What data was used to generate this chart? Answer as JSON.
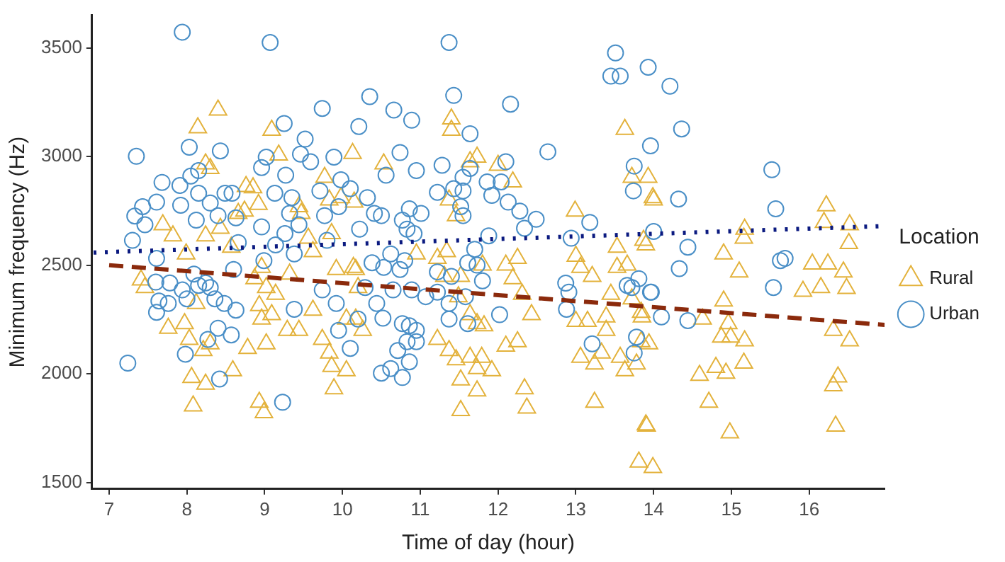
{
  "chart_data": {
    "type": "scatter",
    "xlabel": "Time of day (hour)",
    "ylabel": "Minimum frequency (Hz)",
    "legend_title": "Location",
    "legend": "right",
    "grid": false,
    "xlim": [
      6.78,
      16.97
    ],
    "xticks": [
      7,
      8,
      9,
      10,
      11,
      12,
      13,
      14,
      15,
      16
    ],
    "ylim": [
      1470,
      3650
    ],
    "yticks": [
      1500,
      2000,
      2500,
      3000,
      3500
    ],
    "series": [
      {
        "name": "Rural",
        "color": "#e3b23c",
        "marker": "triangle",
        "x": [
          8.4,
          8.14,
          8.24,
          8.3,
          9.09,
          9.18,
          10.13,
          7.69,
          7.82,
          7.41,
          7.46,
          7.99,
          8.24,
          8.43,
          8.76,
          8.85,
          8.92,
          8.74,
          8.57,
          8.66,
          8.87,
          8.96,
          9.02,
          8.93,
          9.09,
          8.96,
          9.14,
          9.44,
          9.47,
          9.32,
          9.56,
          9.62,
          9.62,
          9.77,
          9.83,
          9.86,
          9.92,
          9.98,
          10.15,
          10.05,
          7.76,
          7.97,
          8.03,
          8.12,
          8.21,
          8.3,
          8.06,
          8.24,
          8.08,
          8.59,
          8.78,
          9.02,
          9.29,
          9.44,
          9.74,
          9.83,
          9.86,
          10.05,
          9.89,
          8.93,
          8.99,
          10.17,
          11.4,
          11.4,
          13.63,
          10.53,
          11.64,
          11.73,
          12.0,
          12.19,
          11.37,
          11.46,
          12.99,
          13.72,
          13.93,
          13.99,
          13.87,
          13.53,
          13.53,
          13.66,
          13.0,
          13.06,
          13.21,
          10.95,
          11.22,
          11.34,
          11.52,
          11.8,
          12.1,
          12.25,
          12.19,
          12.31,
          10.14,
          10.2,
          10.17,
          10.26,
          11.31,
          11.49,
          11.64,
          11.73,
          11.82,
          12.43,
          11.22,
          11.37,
          11.46,
          11.64,
          11.79,
          11.73,
          11.92,
          12.1,
          12.25,
          11.52,
          11.73,
          11.52,
          12.34,
          12.37,
          13.24,
          13.0,
          13.15,
          13.39,
          13.39,
          13.06,
          13.24,
          13.33,
          13.57,
          13.63,
          13.78,
          13.84,
          13.9,
          13.81,
          13.99,
          13.45,
          13.72,
          13.84,
          14.0,
          13.9,
          14.9,
          15.1,
          15.17,
          15.16,
          14.9,
          14.63,
          14.96,
          14.87,
          14.99,
          15.17,
          15.16,
          14.59,
          14.8,
          14.93,
          14.71,
          14.98,
          13.91,
          16.22,
          16.19,
          16.52,
          16.51,
          16.04,
          16.24,
          16.44,
          15.92,
          16.15,
          16.48,
          16.31,
          16.52,
          16.37,
          16.31,
          16.34,
          13.85,
          13.94
        ],
        "values": [
          3214,
          3132,
          2966,
          2945,
          3121,
          3007,
          3014,
          2686,
          2635,
          2432,
          2397,
          2552,
          2635,
          2670,
          2862,
          2856,
          2780,
          2749,
          2583,
          2738,
          2438,
          2490,
          2397,
          2314,
          2272,
          2252,
          2366,
          2769,
          2738,
          2459,
          2624,
          2562,
          2293,
          2904,
          2800,
          2645,
          2480,
          2811,
          2790,
          2252,
          2210,
          2231,
          2158,
          2324,
          2107,
          2138,
          1983,
          1952,
          1852,
          2014,
          2117,
          2138,
          2200,
          2200,
          2158,
          2096,
          2034,
          2014,
          1931,
          1869,
          1821,
          2480,
          3173,
          3121,
          3125,
          2966,
          2976,
          2997,
          2960,
          2883,
          2800,
          2728,
          2749,
          2904,
          2904,
          2811,
          2614,
          2583,
          2490,
          2500,
          2541,
          2490,
          2448,
          2552,
          2531,
          2562,
          2448,
          2500,
          2500,
          2531,
          2438,
          2366,
          2490,
          2397,
          2252,
          2200,
          2448,
          2355,
          2272,
          2231,
          2221,
          2272,
          2158,
          2107,
          2065,
          2076,
          2076,
          2024,
          2014,
          2127,
          2148,
          1972,
          1921,
          1831,
          1931,
          1842,
          1869,
          2241,
          2241,
          2262,
          2200,
          2076,
          2045,
          2096,
          2076,
          2014,
          2045,
          2148,
          1765,
          1594,
          1569,
          2366,
          2345,
          2283,
          2800,
          2593,
          2552,
          2469,
          2666,
          2624,
          2335,
          2252,
          2231,
          2169,
          2169,
          2152,
          2049,
          1993,
          2030,
          2003,
          1869,
          1728,
          1759,
          2773,
          2697,
          2686,
          2600,
          2505,
          2505,
          2469,
          2380,
          2397,
          2393,
          2200,
          2152,
          1986,
          1945,
          1759,
          2262,
          2138
        ]
      },
      {
        "name": "Urban",
        "color": "#4a8fc7",
        "marker": "circle",
        "x": [
          7.94,
          9.07,
          7.35,
          7.24,
          7.3,
          7.33,
          7.43,
          7.46,
          7.61,
          7.68,
          7.91,
          7.92,
          8.03,
          8.05,
          8.15,
          8.12,
          8.15,
          8.43,
          8.3,
          8.4,
          8.49,
          8.58,
          8.63,
          8.66,
          8.6,
          7.61,
          7.6,
          7.64,
          7.61,
          7.76,
          7.78,
          7.94,
          8.0,
          8.09,
          8.15,
          8.24,
          8.3,
          8.36,
          8.4,
          8.48,
          8.57,
          8.63,
          7.98,
          8.27,
          8.42,
          9.23,
          9.02,
          8.96,
          9.13,
          9.25,
          9.27,
          9.46,
          9.52,
          9.59,
          9.35,
          9.32,
          9.44,
          8.96,
          9.14,
          9.26,
          9.38,
          8.99,
          9.38,
          9.74,
          9.71,
          9.89,
          9.98,
          9.77,
          9.8,
          9.95,
          9.74,
          9.92,
          9.95,
          10.1,
          10.21,
          10.35,
          10.1,
          10.22,
          10.29,
          11.37,
          11.43,
          10.66,
          10.89,
          12.16,
          11.64,
          10.74,
          12.64,
          11.28,
          12.1,
          10.95,
          10.56,
          11.64,
          11.55,
          11.22,
          11.43,
          11.86,
          12.04,
          11.92,
          12.13,
          11.55,
          12.28,
          12.49,
          12.34,
          10.32,
          10.41,
          10.5,
          10.86,
          11.01,
          10.77,
          10.83,
          10.92,
          11.52,
          11.55,
          11.88,
          11.7,
          11.61,
          11.73,
          11.8,
          11.4,
          11.22,
          10.38,
          10.53,
          10.62,
          10.74,
          10.8,
          10.65,
          10.89,
          11.07,
          11.22,
          11.37,
          11.58,
          10.44,
          10.52,
          10.2,
          10.77,
          10.86,
          10.95,
          10.83,
          10.95,
          10.71,
          10.86,
          10.62,
          10.5,
          10.77,
          11.37,
          11.61,
          12.02,
          12.87,
          12.91,
          12.88,
          12.94,
          13.18,
          13.21,
          13.45,
          13.57,
          13.51,
          13.93,
          13.96,
          13.75,
          13.74,
          13.66,
          13.72,
          13.81,
          13.96,
          13.78,
          13.75,
          14.21,
          14.36,
          14.32,
          14.0,
          14.44,
          14.33,
          13.97,
          14.1,
          14.44,
          15.52,
          15.57,
          15.63,
          15.69,
          15.54
        ],
        "values": [
          3572,
          3525,
          3001,
          2049,
          2614,
          2726,
          2769,
          2686,
          2790,
          2881,
          2867,
          2776,
          3043,
          2910,
          2935,
          2707,
          2831,
          3026,
          2786,
          2728,
          2831,
          2831,
          2718,
          2604,
          2480,
          2531,
          2422,
          2335,
          2283,
          2324,
          2418,
          2386,
          2345,
          2459,
          2407,
          2418,
          2397,
          2345,
          2210,
          2324,
          2179,
          2293,
          2090,
          2158,
          1976,
          1869,
          2997,
          2949,
          2831,
          3152,
          2914,
          3011,
          3080,
          2976,
          2811,
          2738,
          2686,
          2676,
          2593,
          2645,
          2552,
          2521,
          2297,
          3221,
          2842,
          2997,
          2893,
          2728,
          2614,
          2769,
          2386,
          2324,
          2200,
          2117,
          3138,
          3276,
          2852,
          2666,
          2397,
          3525,
          3281,
          3214,
          3167,
          3241,
          3105,
          3018,
          3022,
          2960,
          2976,
          2935,
          2914,
          2945,
          2904,
          2835,
          2852,
          2883,
          2883,
          2821,
          2790,
          2842,
          2749,
          2711,
          2670,
          2811,
          2738,
          2728,
          2759,
          2738,
          2707,
          2666,
          2645,
          2769,
          2728,
          2635,
          2573,
          2511,
          2500,
          2428,
          2448,
          2469,
          2511,
          2490,
          2552,
          2480,
          2521,
          2386,
          2386,
          2355,
          2376,
          2324,
          2355,
          2324,
          2256,
          2252,
          2231,
          2221,
          2200,
          2148,
          2148,
          2107,
          2055,
          2024,
          2003,
          1983,
          2252,
          2231,
          2272,
          2417,
          2376,
          2297,
          2624,
          2697,
          2138,
          3370,
          3370,
          3477,
          3411,
          3049,
          2956,
          2842,
          2407,
          2397,
          2438,
          2376,
          2169,
          2096,
          3324,
          3127,
          2804,
          2655,
          2583,
          2484,
          2376,
          2262,
          2245,
          2939,
          2759,
          2521,
          2531,
          2397
        ]
      },
      {
        "type": "line",
        "color": "#8b2a0c",
        "line_style": "dashed",
        "marker": "none",
        "x": [
          7,
          16.97
        ],
        "values": [
          2500,
          2225
        ]
      },
      {
        "type": "line",
        "color": "#0b1a80",
        "line_style": "dotted",
        "marker": "none",
        "x": [
          6.8,
          16.97
        ],
        "values": [
          2558,
          2680
        ]
      }
    ]
  }
}
